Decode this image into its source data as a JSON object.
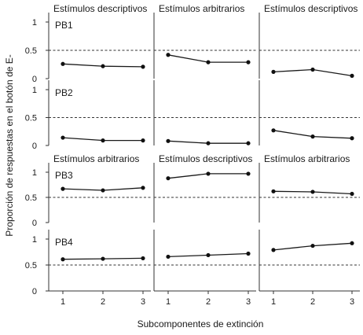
{
  "chart_data": {
    "type": "line",
    "xlabel": "Subcomponentes de extinción",
    "ylabel": "Proporción de respuestas en el botón de E-",
    "x": [
      1,
      2,
      3
    ],
    "x_tick_labels": [
      "1",
      "2",
      "3"
    ],
    "ylim": [
      0,
      1
    ],
    "y_tick_labels": [
      "0",
      "0.5",
      "1"
    ],
    "reference_line": {
      "y": 0.5,
      "style": "dashed"
    },
    "rows": [
      {
        "participant": "PB1",
        "panels": [
          {
            "title": "Estímulos descriptivos",
            "values": [
              0.26,
              0.22,
              0.21
            ]
          },
          {
            "title": "Estímulos arbitrarios",
            "values": [
              0.42,
              0.29,
              0.29
            ]
          },
          {
            "title": "Estímulos descriptivos",
            "values": [
              0.12,
              0.16,
              0.05
            ]
          }
        ]
      },
      {
        "participant": "PB2",
        "panels": [
          {
            "title": "",
            "values": [
              0.14,
              0.09,
              0.09
            ]
          },
          {
            "title": "",
            "values": [
              0.08,
              0.04,
              0.04
            ]
          },
          {
            "title": "",
            "values": [
              0.27,
              0.16,
              0.13
            ]
          }
        ]
      },
      {
        "participant": "PB3",
        "panels": [
          {
            "title": "Estímulos arbitrarios",
            "values": [
              0.67,
              0.64,
              0.69
            ]
          },
          {
            "title": "Estímulos descriptivos",
            "values": [
              0.88,
              0.97,
              0.97
            ]
          },
          {
            "title": "Estímulos arbitrarios",
            "values": [
              0.62,
              0.61,
              0.57
            ]
          }
        ]
      },
      {
        "participant": "PB4",
        "panels": [
          {
            "title": "",
            "values": [
              0.61,
              0.62,
              0.63
            ]
          },
          {
            "title": "",
            "values": [
              0.66,
              0.69,
              0.72
            ]
          },
          {
            "title": "",
            "values": [
              0.79,
              0.87,
              0.92
            ]
          }
        ]
      }
    ]
  }
}
